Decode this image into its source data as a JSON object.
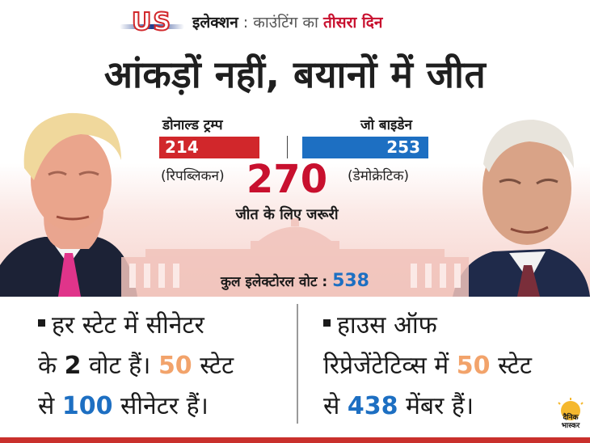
{
  "header": {
    "logo_text": "US",
    "part1": "इलेक्शन",
    "separator": " : ",
    "part2": "काउंटिंग का ",
    "part3": "तीसरा दिन"
  },
  "headline": "आंकड़ों नहीं, बयानों में जीत",
  "candidates": {
    "trump": {
      "name": "डोनाल्ड ट्रम्प",
      "votes": "214",
      "party": "(रिपब्लिकन)"
    },
    "biden": {
      "name": "जो बाइडेन",
      "votes": "253",
      "party": "(डेमोक्रेटिक)"
    }
  },
  "needed": {
    "value": "270",
    "label": "जीत के लिए जरूरी"
  },
  "total": {
    "label": "कुल इलेक्टोरल वोट : ",
    "value": "538"
  },
  "facts": {
    "left": {
      "line1": "हर स्टेट में सीनेटर",
      "line2a": "के ",
      "line2b": "2",
      "line2c": " वोट हैं। ",
      "line2d": "50",
      "line2e": " स्टेट",
      "line3a": "से ",
      "line3b": "100",
      "line3c": " सीनेटर हैं।"
    },
    "right": {
      "line1": "हाउस ऑफ",
      "line2a": "रिप्रेजेंटेटिव्स में ",
      "line2b": "50",
      "line2c": " स्टेट",
      "line3a": "से ",
      "line3b": "438",
      "line3c": " मेंबर हैं।"
    }
  },
  "brand": {
    "line1": "दैनिक",
    "line2": "भास्कर"
  },
  "colors": {
    "republican": "#d1272b",
    "democratic": "#1d6fc2",
    "accent": "#c8102e",
    "highlight": "#f2a36b"
  }
}
